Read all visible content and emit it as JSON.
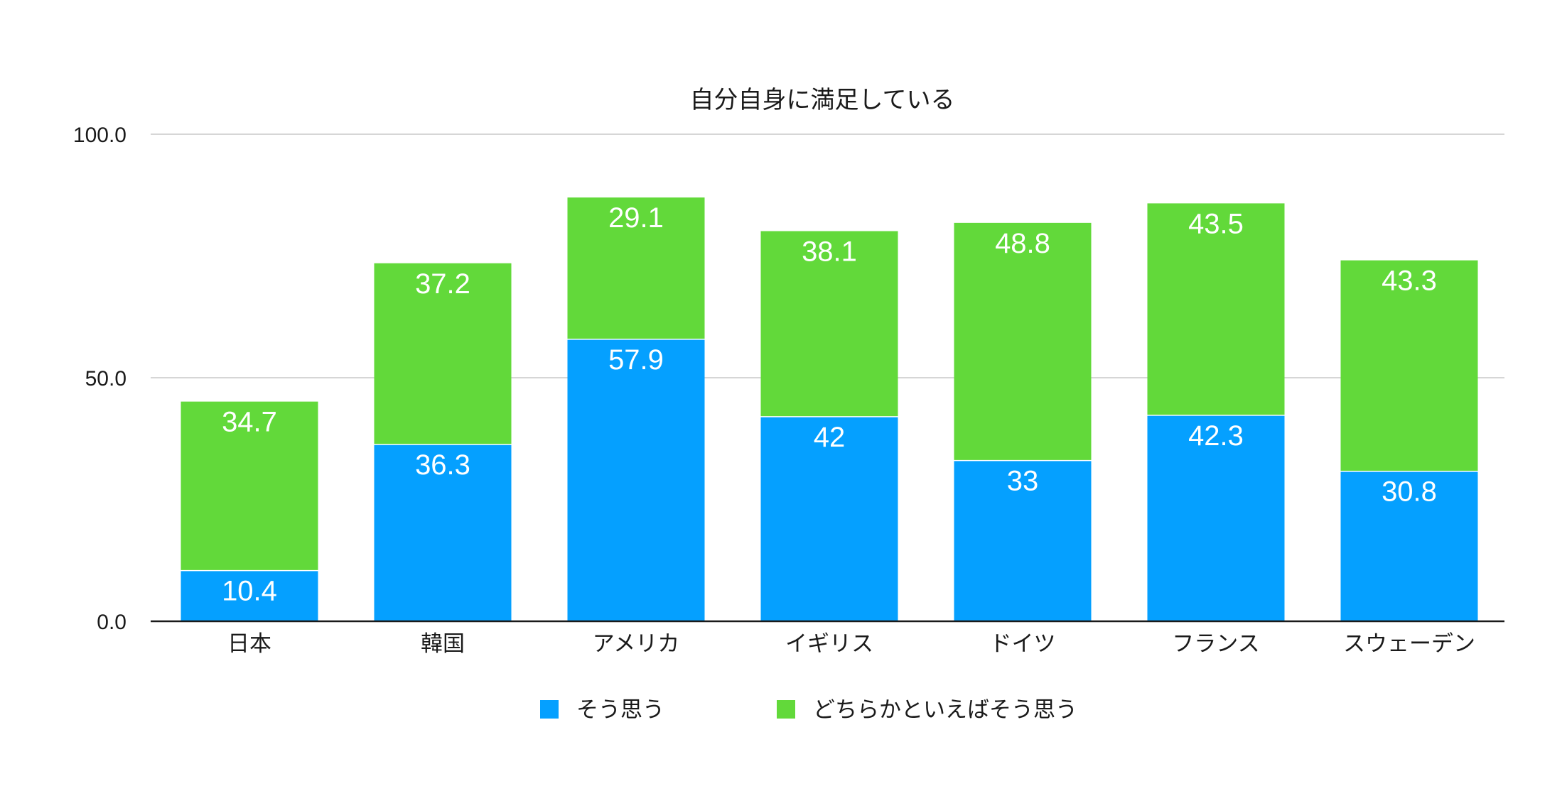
{
  "chart_data": {
    "type": "bar",
    "stacked": true,
    "title": "自分自身に満足している",
    "categories": [
      "日本",
      "韓国",
      "アメリカ",
      "イギリス",
      "ドイツ",
      "フランス",
      "スウェーデン"
    ],
    "series": [
      {
        "name": "そう思う",
        "color": "#05A0FF",
        "values": [
          10.4,
          36.3,
          57.9,
          42,
          33,
          42.3,
          30.8
        ]
      },
      {
        "name": "どちらかといえばそう思う",
        "color": "#62D93A",
        "values": [
          34.7,
          37.2,
          29.1,
          38.1,
          48.8,
          43.5,
          43.3
        ]
      }
    ],
    "ylim": [
      0,
      100
    ],
    "yticks": [
      "0.0",
      "50.0",
      "100.0"
    ],
    "grid": true,
    "legend": "bottom",
    "data_labels": true
  }
}
